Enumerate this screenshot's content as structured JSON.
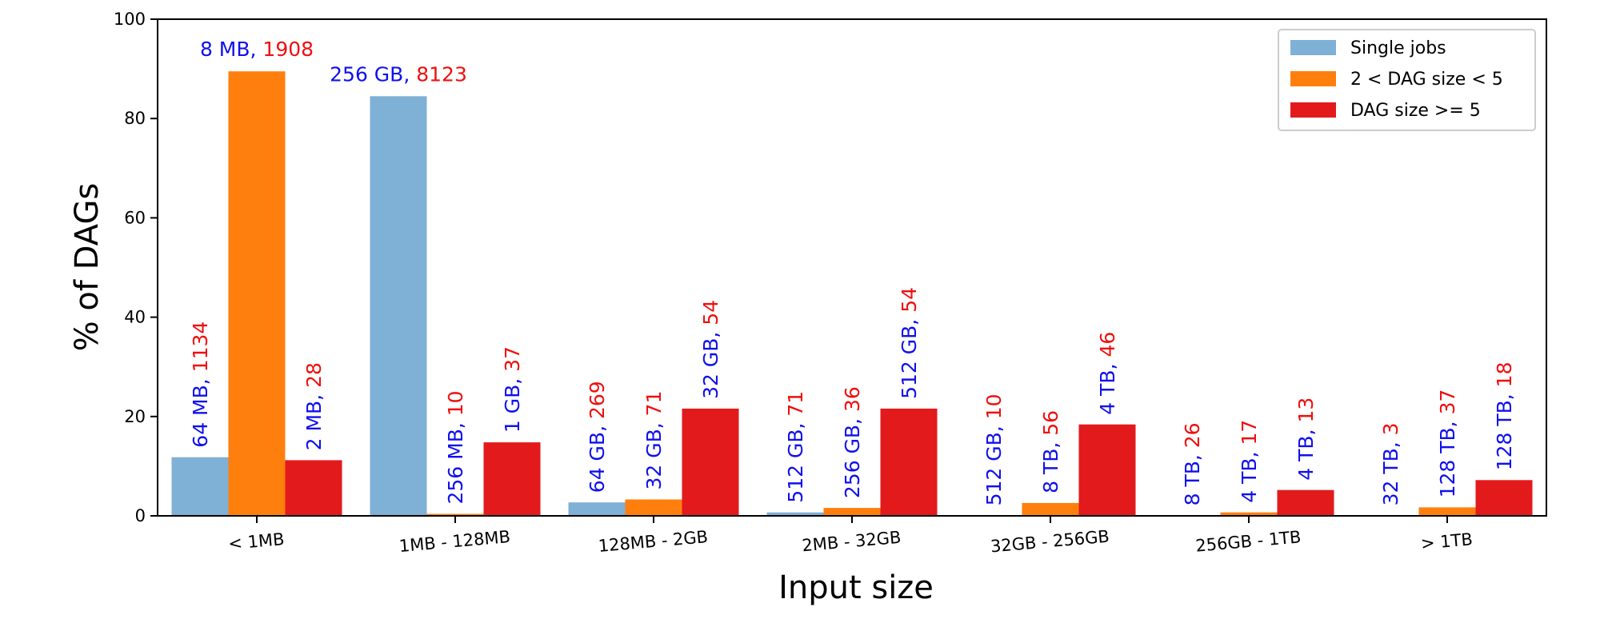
{
  "chart_data": {
    "type": "bar",
    "title": "",
    "xlabel": "Input size",
    "ylabel": "% of DAGs",
    "ylim": [
      0,
      100
    ],
    "yticks": [
      "0",
      "20",
      "40",
      "60",
      "80",
      "100"
    ],
    "grid": false,
    "legend_position": "top-right",
    "categories": [
      "< 1MB",
      "1MB - 128MB",
      "128MB - 2GB",
      "2MB - 32GB",
      "32GB - 256GB",
      "256GB - 1TB",
      "> 1TB"
    ],
    "series": [
      {
        "name": "Single jobs",
        "color": "#7fb0d5",
        "values": [
          11.8,
          84.5,
          2.7,
          0.7,
          0.1,
          0.1,
          0.1
        ],
        "annotations": [
          {
            "size": "64 MB",
            "count": "1134"
          },
          {
            "size": "256 GB",
            "count": "8123"
          },
          {
            "size": "64 GB",
            "count": "269"
          },
          {
            "size": "512 GB",
            "count": "71"
          },
          {
            "size": "512 GB",
            "count": "10"
          },
          {
            "size": "8 TB",
            "count": "26"
          },
          {
            "size": "32 TB",
            "count": "3"
          }
        ]
      },
      {
        "name": "2 < DAG size < 5",
        "color": "#ff7f0e",
        "values": [
          89.5,
          0.4,
          3.3,
          1.6,
          2.6,
          0.7,
          1.7
        ],
        "annotations": [
          {
            "size": "8 MB",
            "count": "1908"
          },
          {
            "size": "256 MB",
            "count": "10"
          },
          {
            "size": "32 GB",
            "count": "71"
          },
          {
            "size": "256 GB",
            "count": "36"
          },
          {
            "size": "8 TB",
            "count": "56"
          },
          {
            "size": "4 TB",
            "count": "17"
          },
          {
            "size": "128 TB",
            "count": "37"
          }
        ]
      },
      {
        "name": "DAG size >= 5",
        "color": "#e31a1c",
        "values": [
          11.2,
          14.8,
          21.6,
          21.6,
          18.4,
          5.2,
          7.2
        ],
        "annotations": [
          {
            "size": "2 MB",
            "count": "28"
          },
          {
            "size": "1 GB",
            "count": "37"
          },
          {
            "size": "32 GB",
            "count": "54"
          },
          {
            "size": "512 GB",
            "count": "54"
          },
          {
            "size": "4 TB",
            "count": "46"
          },
          {
            "size": "4 TB",
            "count": "13"
          },
          {
            "size": "128 TB",
            "count": "18"
          }
        ]
      }
    ],
    "annotation_colors": {
      "size": "#1010ee",
      "count": "#ee1010"
    }
  }
}
